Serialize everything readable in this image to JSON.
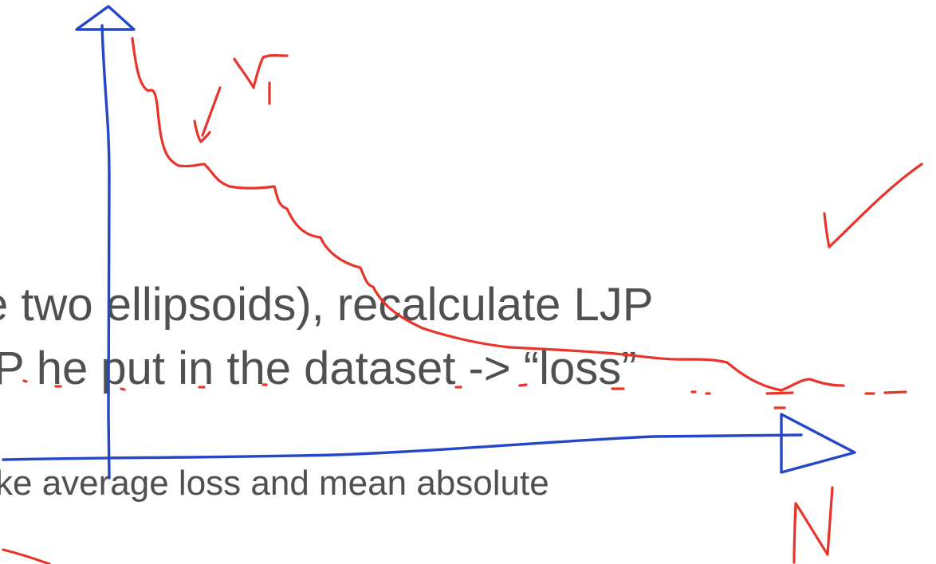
{
  "slide": {
    "line_1": "e two ellipsoids), recalculate LJP",
    "line_2": "P he put in the dataset -> “loss”",
    "line_3": "ke average loss and mean absolute"
  },
  "annotations": {
    "curve_label": "γ₁",
    "x_axis_label": "N",
    "ink_colors": {
      "red": "#e8342a",
      "blue": "#2447c8"
    }
  }
}
